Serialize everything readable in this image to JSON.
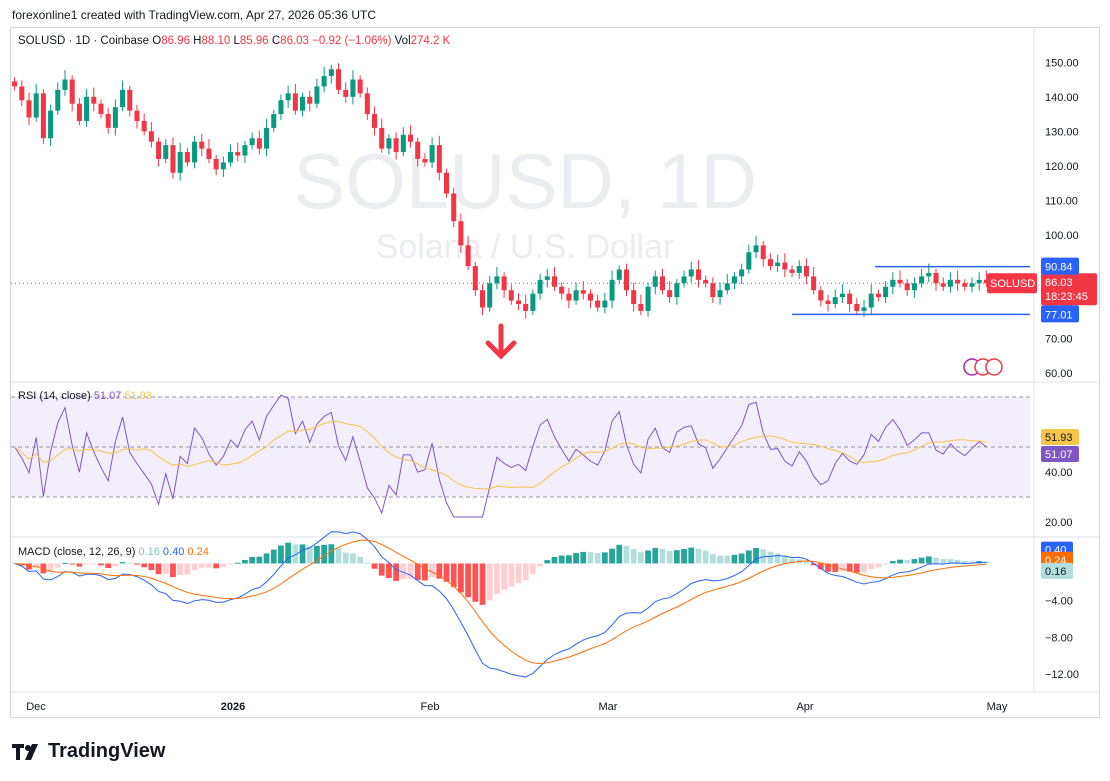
{
  "header": {
    "attribution": "forexonline1 created with TradingView.com, Apr 27, 2026 05:36 UTC"
  },
  "symbol_bar": {
    "title": "SOLUSD · 1D · Coinbase",
    "o_label": "O",
    "o": "86.96",
    "h_label": "H",
    "h": "88.10",
    "l_label": "L",
    "l": "85.96",
    "c_label": "C",
    "c": "86.03",
    "change": "−0.92 (−1.06%)",
    "vol_label": "Vol",
    "vol": "274.2 K"
  },
  "watermark": {
    "symbol": "SOLUSD, 1D",
    "name": "Solana / U.S. Dollar"
  },
  "footer": {
    "brand": "TradingView"
  },
  "colors": {
    "up": "#089981",
    "down": "#f23645",
    "rsi": "#7e57c2",
    "rsi_ma": "#f7c548",
    "macd": "#2962ff",
    "signal": "#ff6d00",
    "level": "#2962ff"
  },
  "chart_data": [
    {
      "type": "candlestick",
      "title": "SOLUSD · 1D · Coinbase",
      "x_ticks": [
        "Dec",
        "2026",
        "Feb",
        "Mar",
        "Apr",
        "May"
      ],
      "y_ticks": [
        "60.00",
        "70.00",
        "80.00",
        "90.00",
        "100.00",
        "110.00",
        "120.00",
        "130.00",
        "140.00",
        "150.00"
      ],
      "ylim": [
        58,
        155
      ],
      "last_price": {
        "value": "86.03",
        "label": "SOLUSD",
        "countdown": "18:23:45"
      },
      "levels": [
        {
          "value": 90.84,
          "label": "90.84"
        },
        {
          "value": 77.01,
          "label": "77.01"
        }
      ],
      "annotation": "down-arrow",
      "closes": [
        143,
        139,
        134,
        141,
        128,
        136,
        142,
        145,
        138,
        133,
        140,
        138,
        135,
        131,
        137,
        142,
        136,
        133,
        130,
        127,
        122,
        126,
        118,
        124,
        121,
        127,
        125,
        122,
        119,
        121,
        124,
        123,
        126,
        128,
        125,
        131,
        135,
        139,
        141,
        136,
        140,
        138,
        143,
        146,
        148,
        142,
        140,
        145,
        141,
        135,
        131,
        125,
        128,
        124,
        129,
        127,
        122,
        121,
        126,
        118,
        112,
        104,
        97,
        91,
        84,
        79,
        86,
        88,
        84,
        81,
        80,
        78,
        83,
        87,
        88,
        85,
        83,
        81,
        84,
        83,
        81,
        79,
        81,
        87,
        90,
        84,
        80,
        78,
        85,
        88,
        84,
        82,
        86,
        88,
        90,
        87,
        86,
        82,
        84,
        86,
        88,
        90,
        95,
        97,
        93,
        91,
        92,
        90,
        89,
        91,
        88,
        84,
        81,
        80,
        82,
        83,
        80,
        78,
        79,
        83,
        82,
        85,
        87,
        86,
        84,
        86,
        88,
        89,
        86,
        85,
        87,
        86,
        85,
        86,
        87,
        86.03
      ],
      "rsi_ticks": [
        "20.00",
        "40.00",
        "51.93",
        "51.07"
      ],
      "rsi_last": "51.07",
      "rsi_ma_last": "51.93",
      "macd_ticks": [
        "0.40",
        "0.24",
        "0.16",
        "−4.00",
        "−8.00",
        "−12.00"
      ],
      "macd_last": "0.40",
      "signal_last": "0.24",
      "hist_last": "0.16"
    }
  ],
  "rsi_legend": {
    "title": "RSI (14, close)",
    "rsi": "51.07",
    "ma": "51.93"
  },
  "macd_legend": {
    "title": "MACD (close, 12, 26, 9)",
    "hist": "0.16",
    "macd": "0.40",
    "signal": "0.24"
  }
}
